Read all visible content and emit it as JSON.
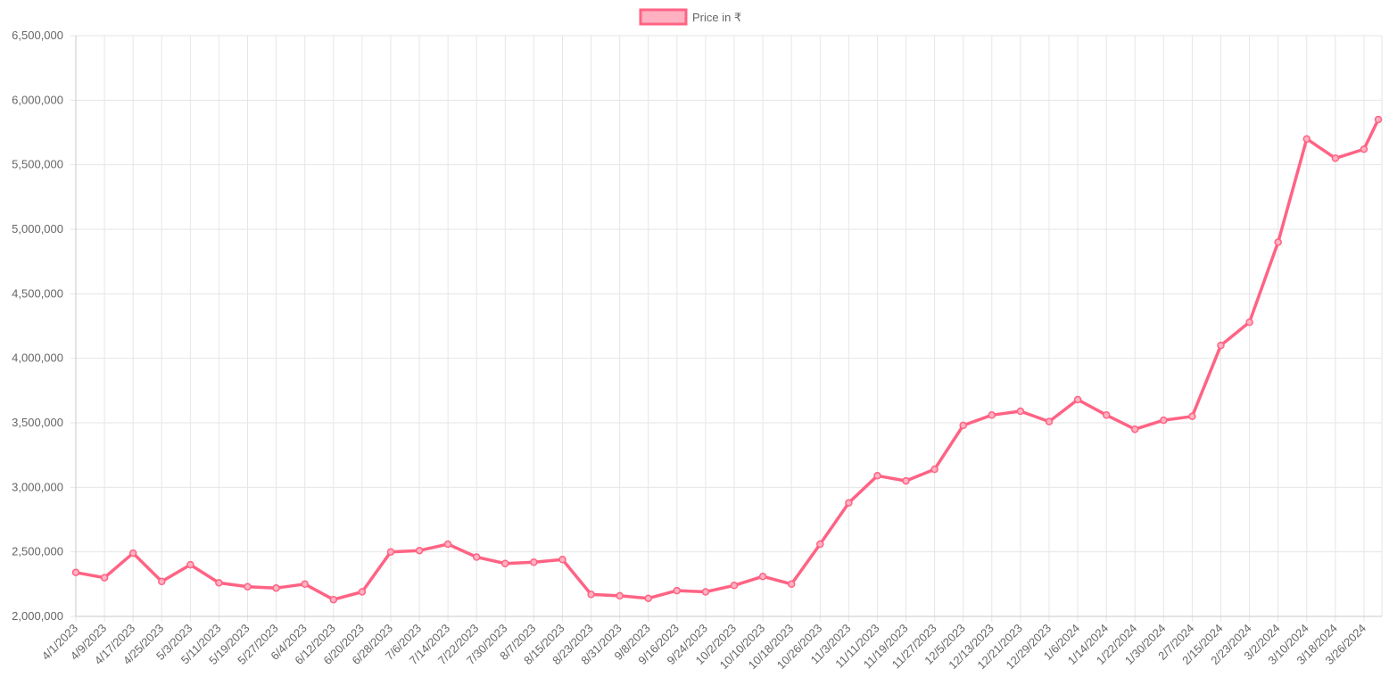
{
  "chart_data": {
    "type": "line",
    "legend": {
      "label": "Price in ₹",
      "position": "top-center"
    },
    "colors": {
      "line": "#ff6384",
      "fill": "#ffb1c1",
      "grid": "#e6e6e6",
      "text": "#666666"
    },
    "grid": true,
    "ylim": [
      2000000,
      6500000
    ],
    "y_ticks": [
      2000000,
      2500000,
      3000000,
      3500000,
      4000000,
      4500000,
      5000000,
      5500000,
      6000000,
      6500000
    ],
    "y_tick_labels": [
      "2,000,000",
      "2,500,000",
      "3,000,000",
      "3,500,000",
      "4,000,000",
      "4,500,000",
      "5,000,000",
      "5,500,000",
      "6,000,000",
      "6,500,000"
    ],
    "x_tick_labels": [
      "4/1/2023",
      "4/9/2023",
      "4/17/2023",
      "4/25/2023",
      "5/3/2023",
      "5/11/2023",
      "5/19/2023",
      "5/27/2023",
      "6/4/2023",
      "6/12/2023",
      "6/20/2023",
      "6/28/2023",
      "7/6/2023",
      "7/14/2023",
      "7/22/2023",
      "7/30/2023",
      "8/7/2023",
      "8/15/2023",
      "8/23/2023",
      "8/31/2023",
      "9/8/2023",
      "9/16/2023",
      "9/24/2023",
      "10/2/2023",
      "10/10/2023",
      "10/18/2023",
      "10/26/2023",
      "11/3/2023",
      "11/11/2023",
      "11/19/2023",
      "11/27/2023",
      "12/5/2023",
      "12/13/2023",
      "12/21/2023",
      "12/29/2023",
      "1/6/2024",
      "1/14/2024",
      "1/22/2024",
      "1/30/2024",
      "2/7/2024",
      "2/15/2024",
      "2/23/2024",
      "3/2/2024",
      "3/10/2024",
      "3/18/2024",
      "3/26/2024"
    ],
    "series": [
      {
        "name": "Price in ₹",
        "x": [
          "2023-04-01",
          "2023-04-09",
          "2023-04-17",
          "2023-04-25",
          "2023-05-03",
          "2023-05-11",
          "2023-05-19",
          "2023-05-27",
          "2023-06-04",
          "2023-06-12",
          "2023-06-20",
          "2023-06-28",
          "2023-07-06",
          "2023-07-14",
          "2023-07-22",
          "2023-07-30",
          "2023-08-07",
          "2023-08-15",
          "2023-08-23",
          "2023-08-31",
          "2023-09-08",
          "2023-09-16",
          "2023-09-24",
          "2023-10-02",
          "2023-10-10",
          "2023-10-18",
          "2023-10-26",
          "2023-11-03",
          "2023-11-11",
          "2023-11-19",
          "2023-11-27",
          "2023-12-05",
          "2023-12-13",
          "2023-12-21",
          "2023-12-29",
          "2024-01-06",
          "2024-01-14",
          "2024-01-22",
          "2024-01-30",
          "2024-02-07",
          "2024-02-15",
          "2024-02-23",
          "2024-03-02",
          "2024-03-10",
          "2024-03-18",
          "2024-03-26",
          "2024-03-30"
        ],
        "y": [
          2340000,
          2300000,
          2490000,
          2270000,
          2400000,
          2260000,
          2230000,
          2220000,
          2250000,
          2130000,
          2190000,
          2500000,
          2510000,
          2560000,
          2460000,
          2410000,
          2420000,
          2440000,
          2170000,
          2160000,
          2140000,
          2200000,
          2190000,
          2240000,
          2310000,
          2250000,
          2560000,
          2880000,
          3090000,
          3050000,
          3140000,
          3480000,
          3560000,
          3590000,
          3510000,
          3680000,
          3560000,
          3450000,
          3520000,
          3550000,
          4100000,
          4280000,
          4900000,
          5700000,
          5550000,
          5620000,
          5850000
        ]
      }
    ]
  }
}
